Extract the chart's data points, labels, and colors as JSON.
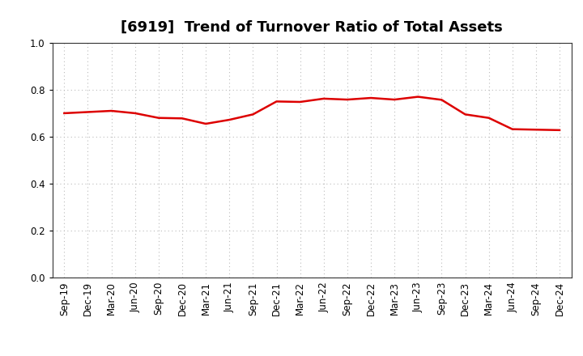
{
  "title": "[6919]  Trend of Turnover Ratio of Total Assets",
  "x_labels": [
    "Sep-19",
    "Dec-19",
    "Mar-20",
    "Jun-20",
    "Sep-20",
    "Dec-20",
    "Mar-21",
    "Jun-21",
    "Sep-21",
    "Dec-21",
    "Mar-22",
    "Jun-22",
    "Sep-22",
    "Dec-22",
    "Mar-23",
    "Jun-23",
    "Sep-23",
    "Dec-23",
    "Mar-24",
    "Jun-24",
    "Sep-24",
    "Dec-24"
  ],
  "values": [
    0.7,
    0.705,
    0.71,
    0.7,
    0.68,
    0.678,
    0.655,
    0.672,
    0.695,
    0.75,
    0.748,
    0.762,
    0.758,
    0.765,
    0.758,
    0.77,
    0.757,
    0.695,
    0.68,
    0.632,
    0.63,
    0.628
  ],
  "line_color": "#dd0000",
  "line_width": 1.8,
  "ylim": [
    0.0,
    1.0
  ],
  "yticks": [
    0.0,
    0.2,
    0.4,
    0.6,
    0.8,
    1.0
  ],
  "grid_color": "#bbbbbb",
  "background_color": "#ffffff",
  "title_fontsize": 13,
  "tick_fontsize": 8.5
}
